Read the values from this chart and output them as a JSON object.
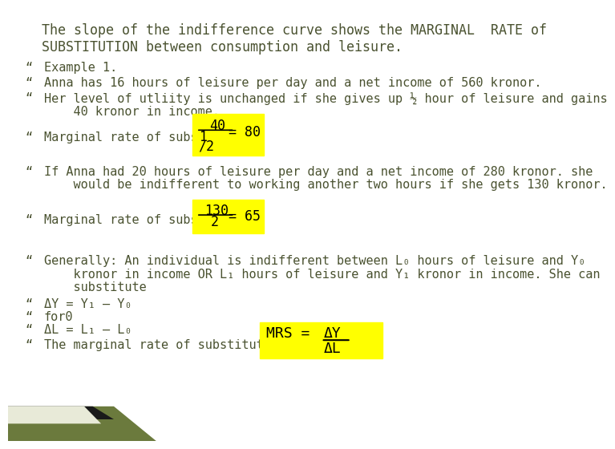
{
  "title_line1": "The slope of the indifference curve shows the MARGINAL  RATE of",
  "title_line2": "SUBSTITUTION between consumption and leisure.",
  "bg_color": "#ffffff",
  "text_color": "#4a5230",
  "bullet_color": "#4a5230",
  "yellow_bg": "#ffff00",
  "font_size": 11,
  "title_font_size": 12,
  "bullet_items": [
    "Example 1.",
    "Anna has 16 hours of leisure per day and a net income of 560 kronor.",
    "Her level of utliity is unchanged if she gives up ½ hour of leisure and gains\n    40 kronor in income.",
    "Marginal rate of substitution:",
    "If Anna had 20 hours of leisure per day and a net income of 280 kronor. she\n    would be indifferent to working another two hours if she gets 130 kronor.",
    "",
    "Marginal rate of substitution",
    "",
    "Generally: An individual is indifferent between L₀ hours of leisure and Y₀\n    kronor in income OR L₁ hours of leisure and Y₁ kronor in income. She can\n    substitute",
    "ΔY = Y₁ – Y₀",
    "for0",
    "ΔL = L₁ – L₀",
    "The marginal rate of substitution is"
  ],
  "decoration_color1": "#6b7a3d",
  "decoration_color2": "#1a1a1a",
  "decoration_color3": "#e8ead8"
}
